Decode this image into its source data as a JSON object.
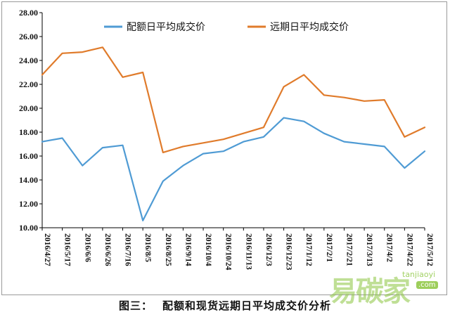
{
  "caption": {
    "label": "图三：",
    "text": "配额和现货远期日平均成交价分析"
  },
  "watermark": {
    "cn": "易碳家",
    "url": "tanjiaoyi",
    "tld": ".com"
  },
  "colors": {
    "spot": "#4f9bd4",
    "forward": "#e07b2b",
    "axis": "#000000",
    "frame": "#9a9a9a",
    "watermark": "#8cc63f"
  },
  "chart_data": {
    "type": "line",
    "title": "",
    "xlabel": "",
    "ylabel": "",
    "ylim": [
      10,
      28
    ],
    "yticks": [
      "10.00",
      "12.00",
      "14.00",
      "16.00",
      "18.00",
      "20.00",
      "22.00",
      "24.00",
      "26.00",
      "28.00"
    ],
    "x": [
      "2016/4/27",
      "2016/5/17",
      "2016/6/6",
      "2016/6/26",
      "2016/7/16",
      "2016/8/5",
      "2016/8/25",
      "2016/9/14",
      "2016/10/4",
      "2016/10/24",
      "2016/11/13",
      "2016/12/3",
      "2016/12/23",
      "2017/1/12",
      "2017/2/1",
      "2017/2/21",
      "2017/3/13",
      "2017/4/2",
      "2017/4/22",
      "2017/5/12"
    ],
    "grid": false,
    "legend": "top",
    "series": [
      {
        "name": "配额日平均成交价",
        "color": "#4f9bd4",
        "values": [
          17.2,
          17.5,
          15.2,
          16.7,
          16.9,
          10.6,
          13.9,
          15.2,
          16.2,
          16.4,
          17.2,
          17.6,
          19.2,
          18.9,
          17.9,
          17.2,
          17.0,
          16.8,
          15.0,
          16.4
        ]
      },
      {
        "name": "远期日平均成交价",
        "color": "#e07b2b",
        "values": [
          22.8,
          24.6,
          24.7,
          25.1,
          22.6,
          23.0,
          16.3,
          16.8,
          17.1,
          17.4,
          17.9,
          18.4,
          21.8,
          22.8,
          21.1,
          20.9,
          20.6,
          20.7,
          17.6,
          18.4
        ]
      }
    ]
  }
}
